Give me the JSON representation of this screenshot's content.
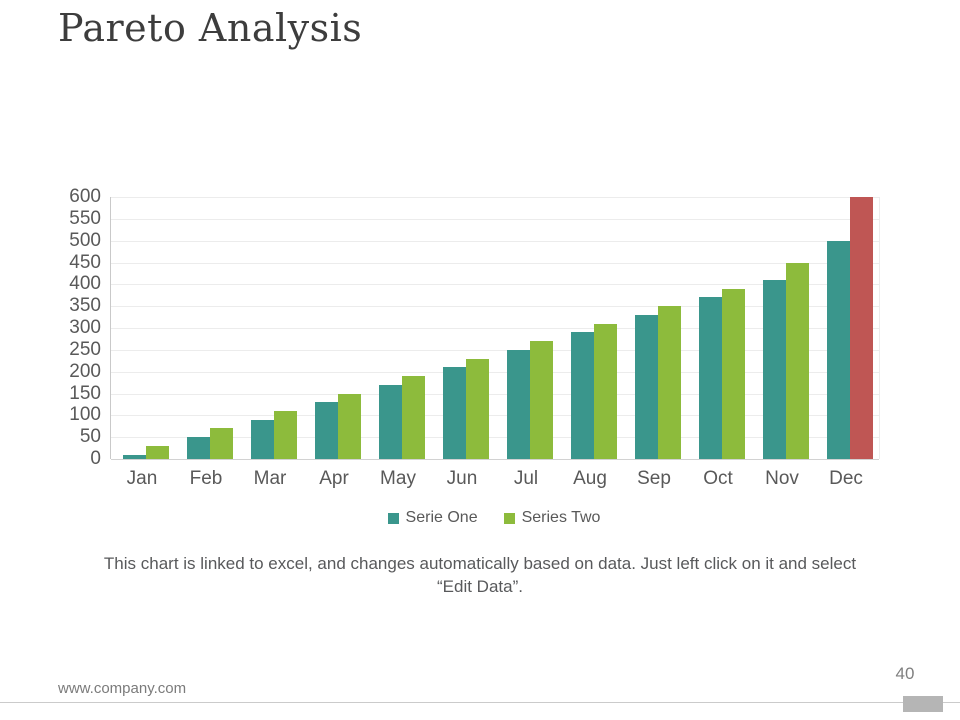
{
  "slide": {
    "title": "Pareto Analysis",
    "caption": "This chart is linked to excel, and changes automatically based on data. Just left click on it and select “Edit Data”.",
    "footer_url": "www.company.com",
    "page_number": "40"
  },
  "chart_data": {
    "type": "bar",
    "title": "",
    "xlabel": "",
    "ylabel": "",
    "categories": [
      "Jan",
      "Feb",
      "Mar",
      "Apr",
      "May",
      "Jun",
      "Jul",
      "Aug",
      "Sep",
      "Oct",
      "Nov",
      "Dec"
    ],
    "series": [
      {
        "name": "Serie One",
        "color": "#3a968c",
        "values": [
          10,
          50,
          90,
          130,
          170,
          210,
          250,
          290,
          330,
          370,
          410,
          500
        ]
      },
      {
        "name": "Series Two",
        "color": "#8dbb3c",
        "values": [
          30,
          70,
          110,
          150,
          190,
          230,
          270,
          310,
          350,
          390,
          450,
          600
        ],
        "highlight_index": 11,
        "highlight_color": "#bf5654"
      }
    ],
    "ylim": [
      0,
      600
    ],
    "ytick_step": 50,
    "grid": true,
    "legend_position": "bottom"
  }
}
